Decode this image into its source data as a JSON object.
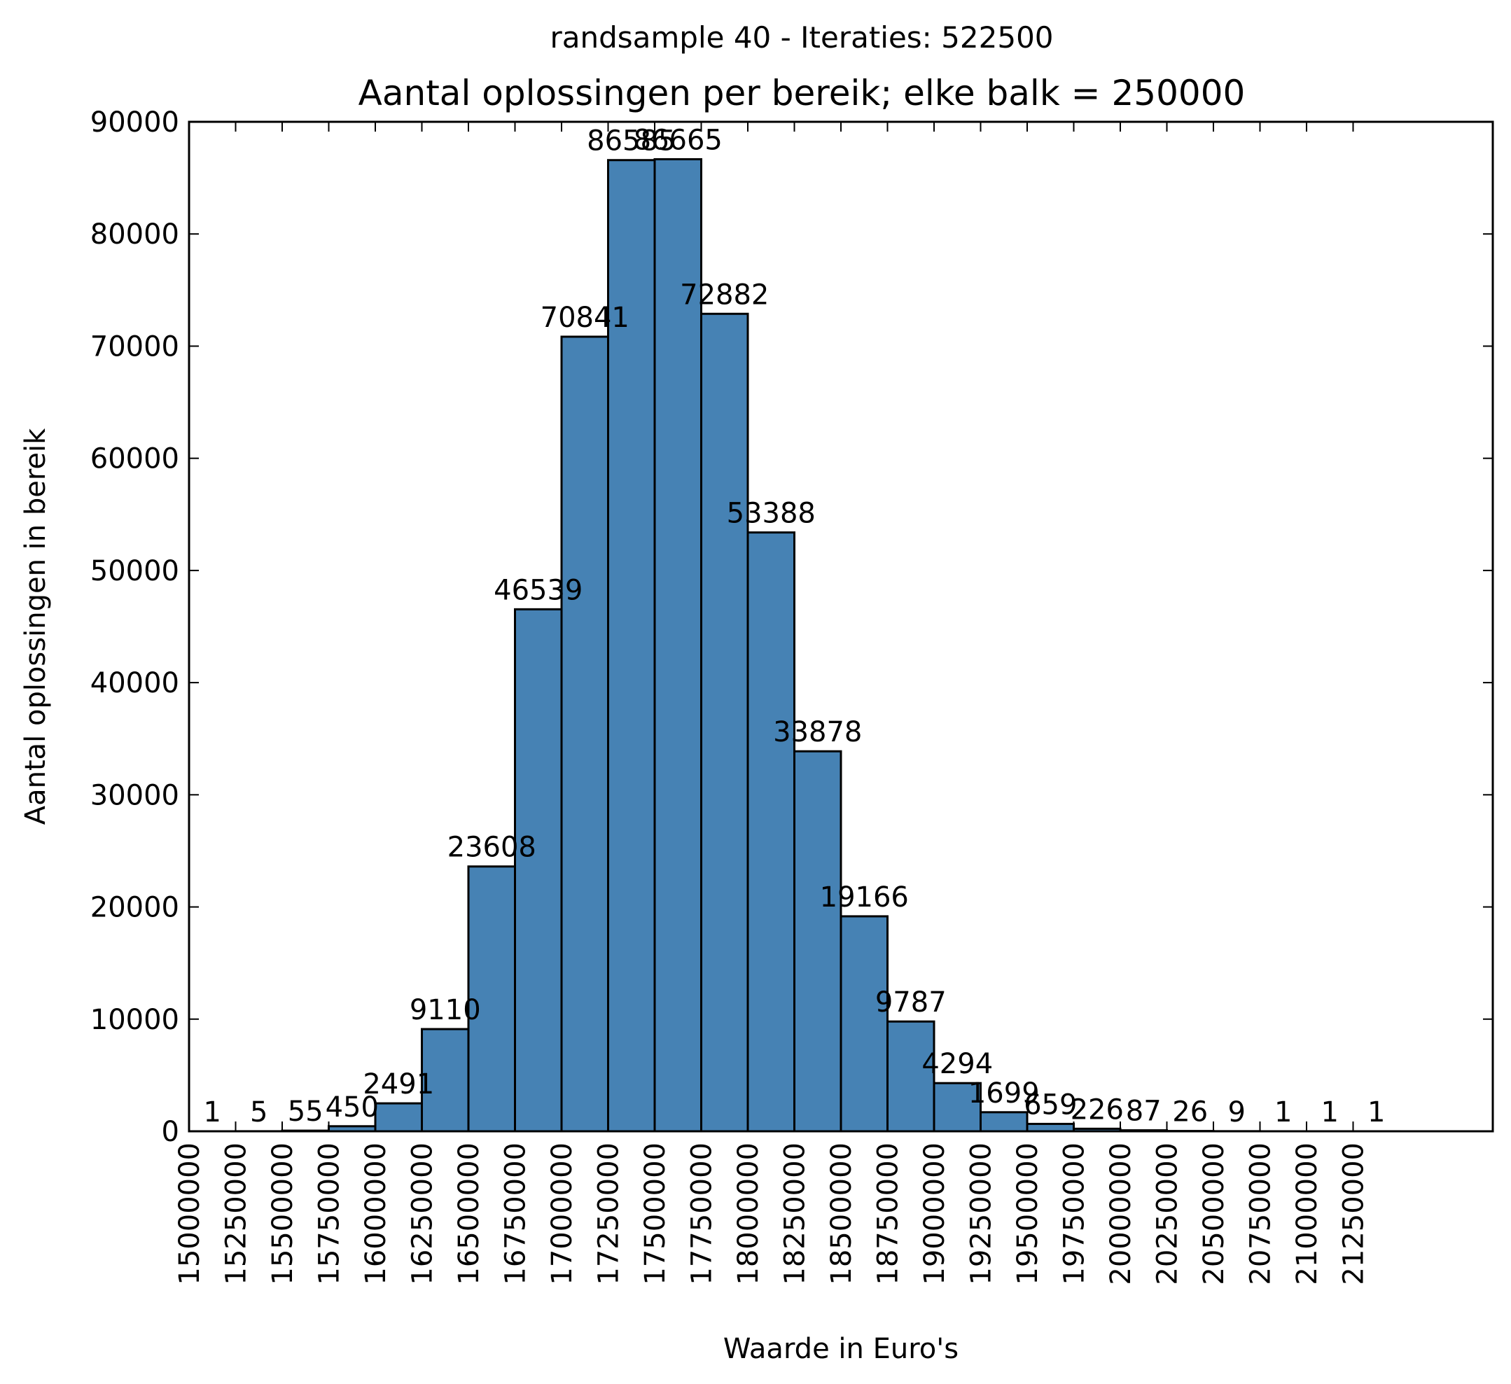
{
  "chart_data": {
    "type": "bar",
    "suptitle": "randsample 40 - Iteraties: 522500",
    "title": "Aantal oplossingen per bereik; elke balk = 250000",
    "xlabel": "Waarde in Euro's",
    "ylabel": "Aantal oplossingen in bereik",
    "bin_width": 250000,
    "xlim": [
      15000000,
      22000000
    ],
    "ylim": [
      0,
      90000
    ],
    "grid": false,
    "legend": "none",
    "bar_color": "#4682b4",
    "edge_color": "#000000",
    "yticks": [
      0,
      10000,
      20000,
      30000,
      40000,
      50000,
      60000,
      70000,
      80000,
      90000
    ],
    "bins": [
      15000000,
      15250000,
      15500000,
      15750000,
      16000000,
      16250000,
      16500000,
      16750000,
      17000000,
      17250000,
      17500000,
      17750000,
      18000000,
      18250000,
      18500000,
      18750000,
      19000000,
      19250000,
      19500000,
      19750000,
      20000000,
      20250000,
      20500000,
      20750000,
      21000000,
      21250000
    ],
    "values": [
      1,
      5,
      55,
      450,
      2491,
      9110,
      23608,
      46539,
      70841,
      86585,
      86665,
      72882,
      53388,
      33878,
      19166,
      9787,
      4294,
      1699,
      659,
      226,
      87,
      26,
      9,
      1,
      1,
      1
    ],
    "bar_labels": [
      "1",
      "5",
      "55",
      "450",
      "2491",
      "9110",
      "23608",
      "46539",
      "70841",
      "86585",
      "86665",
      "72882",
      "53388",
      "33878",
      "19166",
      "9787",
      "4294",
      "1699",
      "659",
      "226",
      "87",
      "26",
      "9",
      "1",
      "1",
      "1"
    ]
  }
}
